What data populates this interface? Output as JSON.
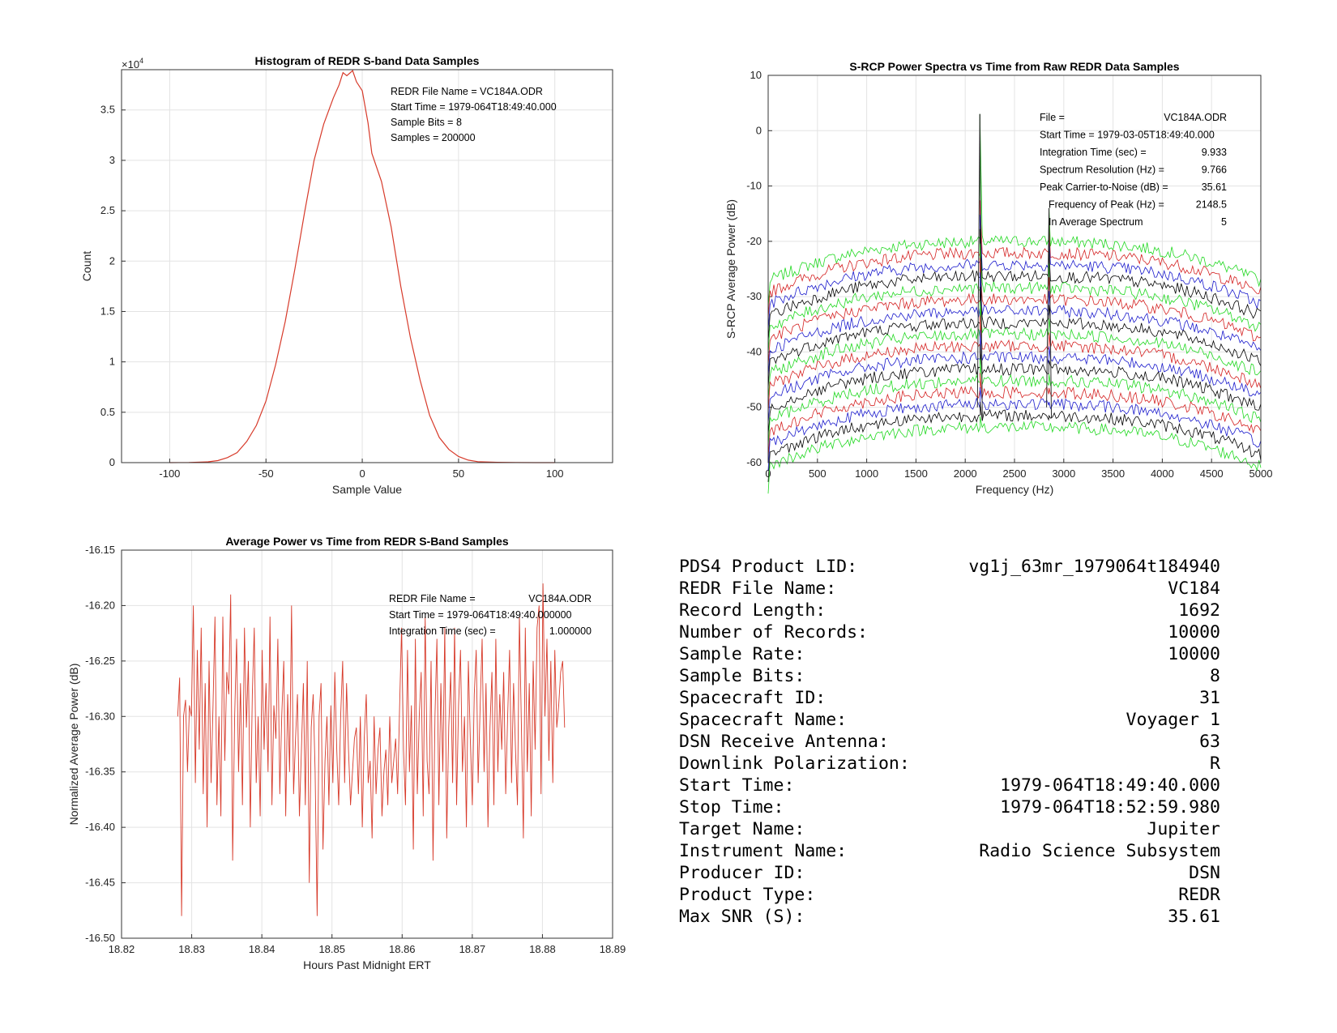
{
  "chart_data": [
    {
      "type": "line",
      "title": "Histogram of REDR S-band Data Samples",
      "xlabel": "Sample Value",
      "ylabel": "Count",
      "multiplier": "×10",
      "multiplier_exp": "4",
      "xlim": [
        -125,
        130
      ],
      "ylim": [
        0,
        39000
      ],
      "xticks": [
        -100,
        -50,
        0,
        50,
        100
      ],
      "xtick_labels": [
        "-100",
        "-50",
        "0",
        "50",
        "100"
      ],
      "yticks": [
        0,
        5000,
        10000,
        15000,
        20000,
        25000,
        30000,
        35000
      ],
      "ytick_labels": [
        "0",
        "0.5",
        "1",
        "1.5",
        "2",
        "2.5",
        "3",
        "3.5"
      ],
      "grid": true,
      "color": "#d73a2a",
      "annotations": [
        "REDR File Name = VC184A.ODR",
        "Start Time = 1979-064T18:49:40.000",
        "Sample Bits = 8",
        "Samples = 200000"
      ],
      "series": [
        {
          "x": [
            -100,
            -90,
            -80,
            -75,
            -70,
            -65,
            -60,
            -55,
            -50,
            -45,
            -40,
            -35,
            -30,
            -25,
            -20,
            -15,
            -12,
            -10,
            -8,
            -5,
            -3,
            0,
            3,
            5,
            10,
            15,
            20,
            25,
            30,
            35,
            40,
            45,
            50,
            55,
            60,
            70,
            80,
            90,
            100
          ],
          "y": [
            0,
            20,
            80,
            200,
            500,
            1000,
            2100,
            3700,
            6100,
            9700,
            14000,
            19200,
            24800,
            30000,
            33600,
            36200,
            37500,
            38700,
            38400,
            38900,
            37800,
            36900,
            33700,
            30700,
            27900,
            23400,
            17500,
            12400,
            8200,
            4700,
            2500,
            1300,
            600,
            250,
            100,
            30,
            10,
            0,
            0
          ]
        }
      ]
    },
    {
      "type": "line",
      "title": "S-RCP Power Spectra vs Time from Raw REDR Data Samples",
      "xlabel": "Frequency (Hz)",
      "ylabel": "S-RCP Average Power (dB)",
      "xlim": [
        0,
        5000
      ],
      "ylim": [
        -60,
        10
      ],
      "xticks": [
        0,
        500,
        1000,
        1500,
        2000,
        2500,
        3000,
        3500,
        4000,
        4500,
        5000
      ],
      "yticks": [
        -60,
        -50,
        -40,
        -30,
        -20,
        -10,
        0,
        10
      ],
      "grid": true,
      "colors": [
        "#1fd81f",
        "#d42020",
        "#1a1acc",
        "#000000"
      ],
      "peaks_hz": [
        2148.5,
        2850
      ],
      "peak_top_db": [
        3,
        -14
      ],
      "spectra_count": 17,
      "top_level_db": -20,
      "level_step_db": 2.1,
      "annotations": [
        {
          "label": "File =",
          "value": "VC184A.ODR"
        },
        {
          "label": "Start Time = 1979-03-05T18:49:40.000",
          "value": ""
        },
        {
          "label": "Integration Time (sec) =",
          "value": "9.933"
        },
        {
          "label": "Spectrum Resolution (Hz) =",
          "value": "9.766"
        },
        {
          "label": "Peak Carrier-to-Noise (dB) =",
          "value": "35.61"
        },
        {
          "label": "Frequency of Peak (Hz) =",
          "value": "2148.5"
        },
        {
          "label": "In Average Spectrum",
          "value": "5"
        }
      ]
    },
    {
      "type": "line",
      "title": "Average Power vs Time from REDR S-Band Samples",
      "xlabel": "Hours Past Midnight ERT",
      "ylabel": "Normalized Average Power (dB)",
      "xlim": [
        18.82,
        18.89
      ],
      "ylim": [
        -16.5,
        -16.15
      ],
      "xticks": [
        18.82,
        18.83,
        18.84,
        18.85,
        18.86,
        18.87,
        18.88,
        18.89
      ],
      "yticks": [
        -16.5,
        -16.45,
        -16.4,
        -16.35,
        -16.3,
        -16.25,
        -16.2,
        -16.15
      ],
      "grid": true,
      "color": "#d73a2a",
      "x_start": 18.828,
      "x_step": 0.00028,
      "annotations": [
        {
          "label": "REDR File Name =",
          "value": "VC184A.ODR"
        },
        {
          "label": "Start Time = 1979-064T18:49:40.000000",
          "value": ""
        },
        {
          "label": "Integration Time (sec) =",
          "value": "1.000000"
        }
      ],
      "y": [
        -16.3,
        -16.265,
        -16.48,
        -16.3,
        -16.285,
        -16.35,
        -16.29,
        -16.3,
        -16.2,
        -16.36,
        -16.24,
        -16.33,
        -16.22,
        -16.37,
        -16.27,
        -16.4,
        -16.25,
        -16.36,
        -16.29,
        -16.21,
        -16.38,
        -16.3,
        -16.39,
        -16.21,
        -16.34,
        -16.26,
        -16.28,
        -16.19,
        -16.43,
        -16.3,
        -16.23,
        -16.35,
        -16.27,
        -16.38,
        -16.22,
        -16.31,
        -16.25,
        -16.4,
        -16.28,
        -16.22,
        -16.36,
        -16.3,
        -16.39,
        -16.24,
        -16.33,
        -16.27,
        -16.35,
        -16.21,
        -16.38,
        -16.29,
        -16.32,
        -16.23,
        -16.37,
        -16.3,
        -16.25,
        -16.39,
        -16.28,
        -16.35,
        -16.2,
        -16.37,
        -16.32,
        -16.28,
        -16.39,
        -16.33,
        -16.27,
        -16.38,
        -16.25,
        -16.45,
        -16.31,
        -16.28,
        -16.35,
        -16.48,
        -16.3,
        -16.27,
        -16.42,
        -16.34,
        -16.3,
        -16.38,
        -16.29,
        -16.36,
        -16.26,
        -16.33,
        -16.38,
        -16.3,
        -16.25,
        -16.36,
        -16.27,
        -16.33,
        -16.38,
        -16.35,
        -16.32,
        -16.31,
        -16.37,
        -16.3,
        -16.4,
        -16.32,
        -16.28,
        -16.36,
        -16.34,
        -16.41,
        -16.3,
        -16.37,
        -16.33,
        -16.31,
        -16.39,
        -16.35,
        -16.33,
        -16.38,
        -16.3,
        -16.36,
        -16.34,
        -16.32,
        -16.37,
        -16.29,
        -16.22,
        -16.33,
        -16.38,
        -16.24,
        -16.35,
        -16.29,
        -16.42,
        -16.23,
        -16.37,
        -16.3,
        -16.26,
        -16.39,
        -16.21,
        -16.34,
        -16.37,
        -16.25,
        -16.43,
        -16.3,
        -16.23,
        -16.38,
        -16.27,
        -16.35,
        -16.22,
        -16.41,
        -16.31,
        -16.26,
        -16.36,
        -16.22,
        -16.38,
        -16.29,
        -16.24,
        -16.35,
        -16.3,
        -16.4,
        -16.25,
        -16.32,
        -16.38,
        -16.28,
        -16.24,
        -16.36,
        -16.29,
        -16.23,
        -16.35,
        -16.27,
        -16.4,
        -16.31,
        -16.26,
        -16.38,
        -16.23,
        -16.35,
        -16.28,
        -16.33,
        -16.26,
        -16.37,
        -16.3,
        -16.24,
        -16.36,
        -16.27,
        -16.33,
        -16.38,
        -16.21,
        -16.31,
        -16.41,
        -16.22,
        -16.35,
        -16.27,
        -16.39,
        -16.25,
        -16.33,
        -16.22,
        -16.2,
        -16.37,
        -16.18,
        -16.3,
        -16.23,
        -16.34,
        -16.25,
        -16.36,
        -16.24,
        -16.31,
        -16.29,
        -16.26,
        -16.25,
        -16.31
      ]
    }
  ],
  "metadata": [
    {
      "label": "PDS4 Product LID:",
      "value": "vg1j_63mr_1979064t184940"
    },
    {
      "label": "REDR File Name:",
      "value": "VC184"
    },
    {
      "label": "Record Length:",
      "value": "1692"
    },
    {
      "label": "Number of Records:",
      "value": "10000"
    },
    {
      "label": "Sample Rate:",
      "value": "10000"
    },
    {
      "label": "Sample Bits:",
      "value": "8"
    },
    {
      "label": "Spacecraft ID:",
      "value": "31"
    },
    {
      "label": "Spacecraft Name:",
      "value": "Voyager 1"
    },
    {
      "label": "DSN Receive Antenna:",
      "value": "63"
    },
    {
      "label": "Downlink Polarization:",
      "value": "R"
    },
    {
      "label": "Start Time:",
      "value": "1979-064T18:49:40.000"
    },
    {
      "label": "Stop Time:",
      "value": "1979-064T18:52:59.980"
    },
    {
      "label": "Target Name:",
      "value": "Jupiter"
    },
    {
      "label": "Instrument Name:",
      "value": "Radio Science Subsystem"
    },
    {
      "label": "Producer ID:",
      "value": "DSN"
    },
    {
      "label": "Product Type:",
      "value": "REDR"
    },
    {
      "label": "Max SNR (S):",
      "value": "35.61"
    }
  ]
}
